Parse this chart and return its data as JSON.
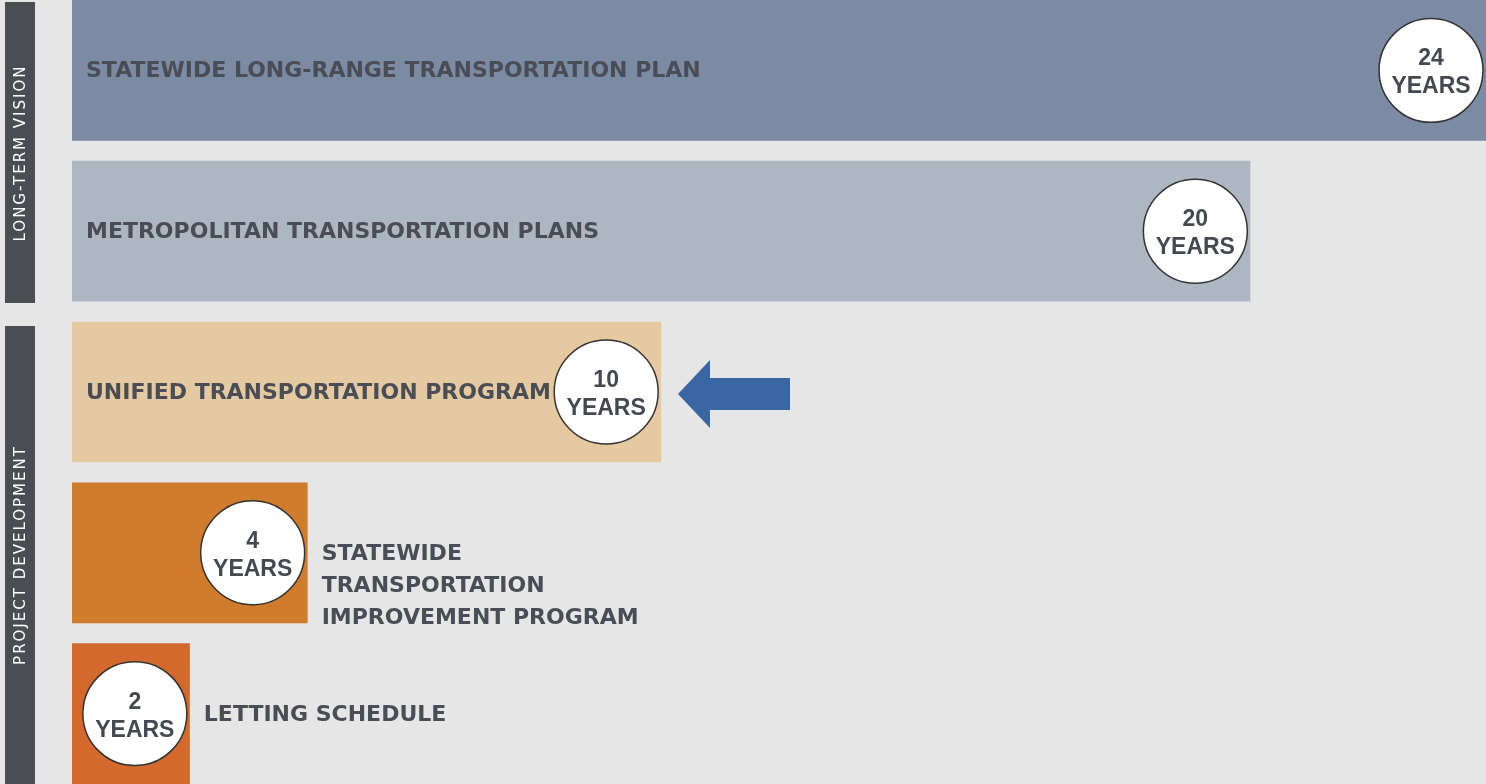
{
  "chart_data": {
    "type": "bar",
    "orientation": "horizontal",
    "categories": [
      "STATEWIDE LONG-RANGE TRANSPORTATION PLAN",
      "METROPOLITAN TRANSPORTATION PLANS",
      "UNIFIED TRANSPORTATION PROGRAM",
      "STATEWIDE TRANSPORTATION IMPROVEMENT PROGRAM",
      "LETTING SCHEDULE"
    ],
    "values": [
      24,
      20,
      10,
      4,
      2
    ],
    "colors": [
      "#7b8ba3",
      "#adb7c2",
      "#e5c9a0",
      "#cf7c2c",
      "#d4692d"
    ],
    "value_labels": [
      "24 YEARS",
      "20 YEARS",
      "10 YEARS",
      "4 YEARS",
      "2 YEARS"
    ],
    "annotations": [
      "LONG-TERM VISION",
      "PROJECT DEVELOPMENT"
    ]
  }
}
